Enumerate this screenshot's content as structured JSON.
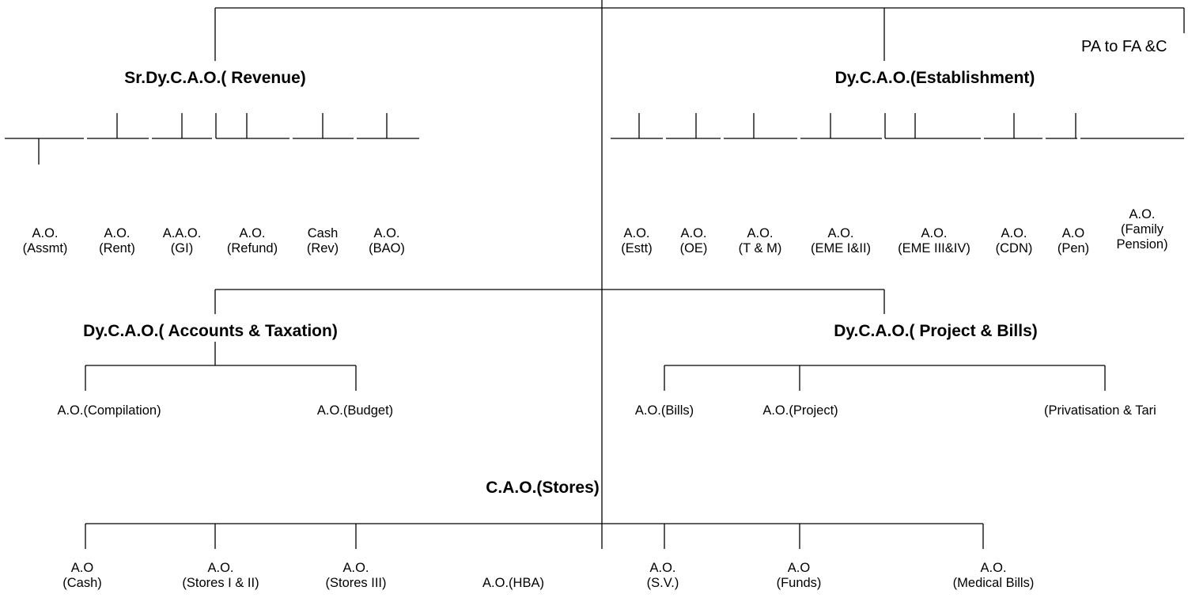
{
  "headings": {
    "revenue": "Sr.Dy.C.A.O.( Revenue)",
    "establishment": "Dy.C.A.O.(Establishment)",
    "accounts": "Dy.C.A.O.( Accounts & Taxation)",
    "project": "Dy.C.A.O.( Project & Bills)",
    "stores": "C.A.O.(Stores)",
    "pa": "PA to FA &C"
  },
  "revenue_units": [
    {
      "l1": "A.O.",
      "l2": "(Assmt)"
    },
    {
      "l1": "A.O.",
      "l2": "(Rent)"
    },
    {
      "l1": "A.A.O.",
      "l2": "(GI)"
    },
    {
      "l1": "A.O.",
      "l2": "(Refund)"
    },
    {
      "l1": "Cash",
      "l2": "(Rev)"
    },
    {
      "l1": "A.O.",
      "l2": "(BAO)"
    }
  ],
  "establishment_units": [
    {
      "l1": "A.O.",
      "l2": "(Estt)"
    },
    {
      "l1": "A.O.",
      "l2": "(OE)"
    },
    {
      "l1": "A.O.",
      "l2": "(T & M)"
    },
    {
      "l1": "A.O.",
      "l2": "(EME I&II)"
    },
    {
      "l1": "A.O.",
      "l2": "(EME III&IV)"
    },
    {
      "l1": "A.O.",
      "l2": "(CDN)"
    },
    {
      "l1": "A.O",
      "l2": "(Pen)"
    },
    {
      "l1": "A.O.",
      "l2": "(Family",
      "l3": "Pension)"
    }
  ],
  "accounts_units": [
    "A.O.(Compilation)",
    "A.O.(Budget)"
  ],
  "project_units": [
    "A.O.(Bills)",
    "A.O.(Project)",
    "(Privatisation & Tari"
  ],
  "stores_units": [
    {
      "l1": "A.O",
      "l2": "(Cash)"
    },
    {
      "l1": "A.O.",
      "l2": "(Stores I & II)"
    },
    {
      "l1": "A.O.",
      "l2": "(Stores III)"
    },
    {
      "l1": "",
      "l2": "A.O.(HBA)"
    },
    {
      "l1": "A.O.",
      "l2": "(S.V.)"
    },
    {
      "l1": "A.O",
      "l2": "(Funds)"
    },
    {
      "l1": "A.O.",
      "l2": "(Medical Bills)"
    }
  ]
}
